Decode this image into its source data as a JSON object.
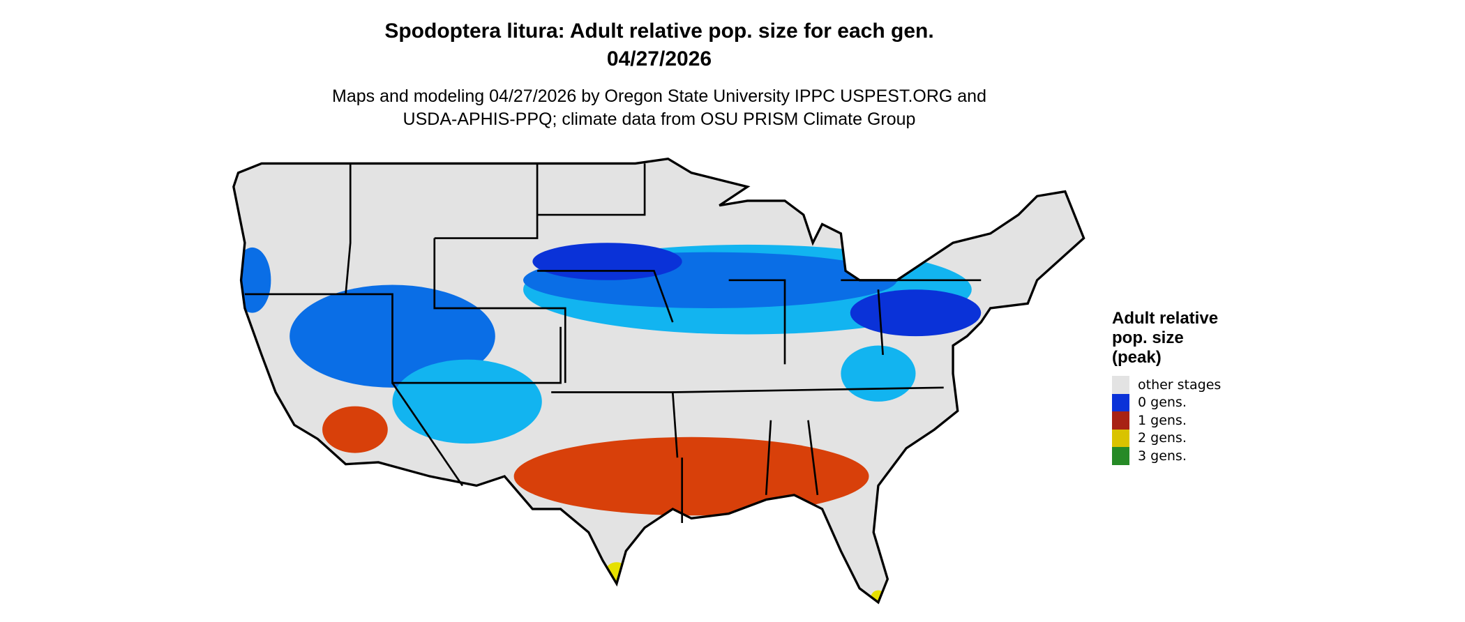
{
  "title": {
    "line1": "Spodoptera litura: Adult relative pop. size for each gen.",
    "line2": "04/27/2026"
  },
  "subtitle": {
    "line1": "Maps and modeling 04/27/2026 by Oregon State University IPPC USPEST.ORG and",
    "line2": "USDA-APHIS-PPQ; climate data from OSU PRISM Climate Group"
  },
  "legend": {
    "title": "Adult relative\npop. size\n(peak)",
    "items": [
      {
        "label": "other stages",
        "color": "#e3e3e3"
      },
      {
        "label": "0 gens.",
        "color": "#0a32d8"
      },
      {
        "label": "1 gens.",
        "color": "#a82214"
      },
      {
        "label": "2 gens.",
        "color": "#d9c300"
      },
      {
        "label": "3 gens.",
        "color": "#268a26"
      }
    ]
  },
  "map_colors": {
    "background": "#e3e3e3",
    "light_blue": "#12b4f0",
    "mid_blue": "#0a6ee6",
    "dark_blue": "#0a32d8",
    "orange_red": "#d8400a",
    "yellow": "#e6e000",
    "border": "#000000"
  }
}
